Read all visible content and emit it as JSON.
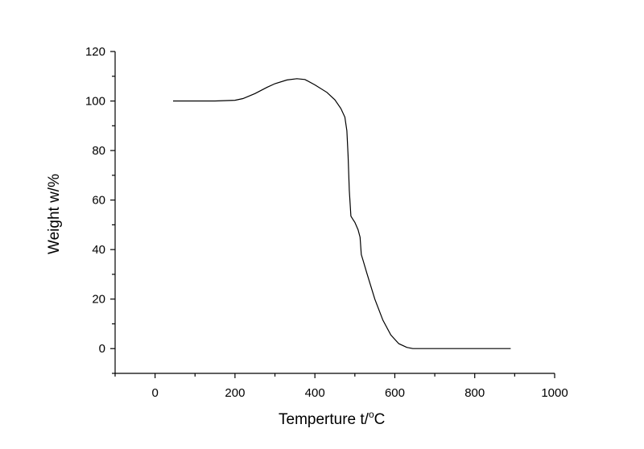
{
  "chart_data": {
    "type": "line",
    "xlabel": "Temperture t/",
    "xlabel_sup": "o",
    "xlabel_unit": "C",
    "ylabel": "Weight  w/%",
    "xlim": [
      -100,
      1000
    ],
    "ylim": [
      -10,
      120
    ],
    "x_ticks": [
      0,
      200,
      400,
      600,
      800,
      1000
    ],
    "y_ticks": [
      0,
      20,
      40,
      60,
      80,
      100,
      120
    ],
    "x_minor_step": 100,
    "y_minor_step": 10,
    "grid": false,
    "series": [
      {
        "x": [
          45,
          100,
          150,
          200,
          220,
          250,
          280,
          300,
          330,
          355,
          375,
          400,
          430,
          450,
          465,
          475,
          480,
          483,
          486,
          490,
          494,
          500,
          508,
          513,
          516,
          520,
          530,
          550,
          570,
          590,
          610,
          630,
          645,
          660,
          700,
          750,
          800,
          850,
          890
        ],
        "y": [
          100,
          100,
          100,
          100.3,
          101,
          103,
          105.5,
          107,
          108.5,
          109,
          108.7,
          106.5,
          103.5,
          100.5,
          97,
          93.5,
          88,
          78,
          64,
          53.5,
          52.5,
          51,
          48,
          45,
          38,
          36,
          30.5,
          20,
          11.5,
          5.5,
          2,
          0.5,
          0,
          0,
          0,
          0,
          0,
          0,
          0
        ]
      }
    ]
  }
}
